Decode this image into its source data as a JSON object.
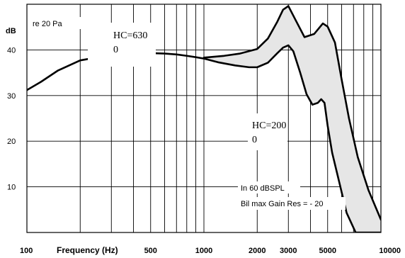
{
  "chart_data": {
    "type": "line",
    "title": "",
    "ylabel": "dB",
    "xlabel": "Frequency (Hz)",
    "x_scale": "log",
    "xlim": [
      100,
      10000
    ],
    "ylim": [
      0,
      50
    ],
    "grid": true,
    "x_tick_labels": [
      {
        "value": 100,
        "label": "100"
      },
      {
        "value": 500,
        "label": "500"
      },
      {
        "value": 1000,
        "label": "1000"
      },
      {
        "value": 2000,
        "label": "2000"
      },
      {
        "value": 3000,
        "label": "3000"
      },
      {
        "value": 5000,
        "label": "5000"
      },
      {
        "value": 10000,
        "label": "10000"
      }
    ],
    "y_tick_labels": [
      {
        "value": 10,
        "label": "10"
      },
      {
        "value": 20,
        "label": "20"
      },
      {
        "value": 30,
        "label": "30"
      },
      {
        "value": 40,
        "label": "40"
      }
    ],
    "reference_label": "re 20 Pa",
    "shared_curve": {
      "x": [
        100,
        120,
        150,
        200,
        300,
        400,
        500,
        600,
        700,
        800,
        900,
        1000
      ],
      "y": [
        31.2,
        33,
        35.5,
        37.7,
        38.9,
        39.2,
        39.3,
        39.2,
        39,
        38.7,
        38.4,
        38.1
      ]
    },
    "series": [
      {
        "name": "HC=6300",
        "x": [
          1000,
          1300,
          1600,
          2000,
          2300,
          2600,
          2800,
          3000,
          3300,
          3700,
          4200,
          4700,
          5000,
          5500,
          6000,
          6600,
          7400,
          8500,
          10000
        ],
        "y": [
          38.3,
          38.7,
          39.2,
          40.2,
          42.5,
          46.2,
          48.8,
          49.6,
          46.5,
          42.8,
          43.5,
          45.8,
          45.1,
          41.6,
          33.5,
          25,
          16.5,
          9.3,
          2.8
        ]
      },
      {
        "name": "HC=2000",
        "x": [
          1000,
          1200,
          1500,
          1800,
          2000,
          2300,
          2600,
          2800,
          3000,
          3200,
          3500,
          3800,
          4100,
          4400,
          4600,
          4800,
          5000,
          5300,
          5800,
          6400,
          7200,
          8000,
          9000,
          10000
        ],
        "y": [
          38.1,
          37.3,
          36.6,
          36.2,
          36.2,
          37.2,
          39.3,
          40.5,
          41,
          39.7,
          35,
          30.3,
          28,
          28.4,
          29.2,
          28.4,
          23.4,
          17.5,
          11.2,
          4.3,
          0,
          0,
          0,
          0
        ]
      }
    ],
    "annotations": [
      {
        "lines": [
          "HC=630",
          "0"
        ]
      },
      {
        "lines": [
          "HC=200",
          "0"
        ]
      },
      {
        "lines": [
          "In 60 dBSPL"
        ]
      },
      {
        "lines": [
          "Bil max Gain Res = - 20"
        ]
      }
    ],
    "fill_between": {
      "color": "#e6e6e6"
    }
  }
}
